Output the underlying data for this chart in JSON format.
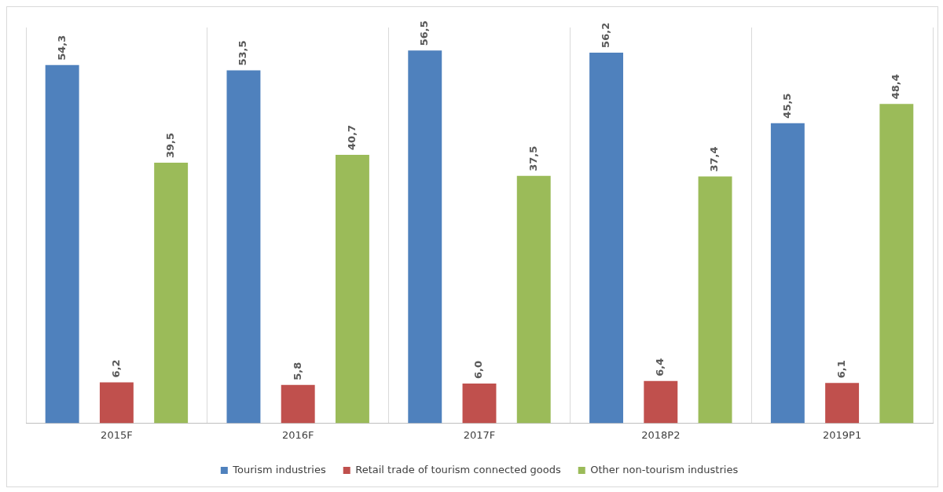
{
  "chart_data": {
    "type": "bar",
    "categories": [
      "2015F",
      "2016F",
      "2017F",
      "2018P2",
      "2019P1"
    ],
    "series": [
      {
        "name": "Tourism industries",
        "color": "#4f81bd",
        "values": [
          54.3,
          53.5,
          56.5,
          56.2,
          45.5
        ],
        "value_labels": [
          "54,3",
          "53,5",
          "56,5",
          "56,2",
          "45,5"
        ]
      },
      {
        "name": "Retail trade of tourism connected goods",
        "color": "#c0504d",
        "values": [
          6.2,
          5.8,
          6.0,
          6.4,
          6.1
        ],
        "value_labels": [
          "6,2",
          "5,8",
          "6,0",
          "6,4",
          "6,1"
        ]
      },
      {
        "name": "Other non-tourism industries",
        "color": "#9bbb59",
        "values": [
          39.5,
          40.7,
          37.5,
          37.4,
          48.4
        ],
        "value_labels": [
          "39,5",
          "40,7",
          "37,5",
          "37,4",
          "48,4"
        ]
      }
    ],
    "ylim": [
      0,
      60
    ],
    "grid": "x",
    "legend": "bottom",
    "tick_labels": "x"
  }
}
